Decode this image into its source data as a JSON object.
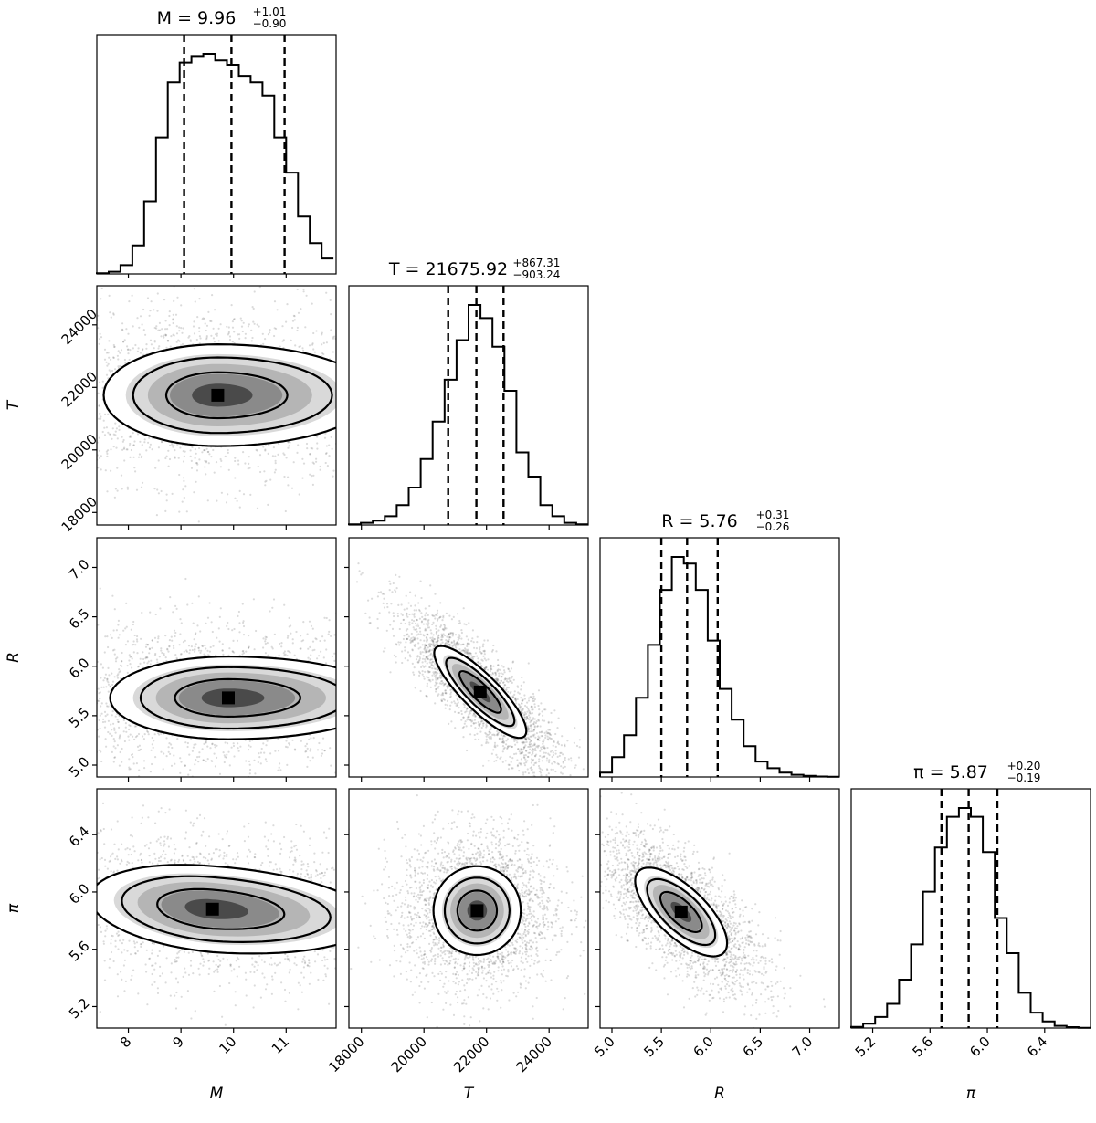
{
  "chart_data": {
    "type": "corner",
    "parameters": [
      {
        "key": "M",
        "label": "M",
        "ticks": [
          "8",
          "9",
          "10",
          "11"
        ],
        "title": {
          "lhs": "M = 9.96",
          "plus": "+1.01",
          "minus": "−0.90"
        },
        "median": 9.96,
        "lo": 9.06,
        "hi": 10.97,
        "range": [
          7.4,
          11.95
        ]
      },
      {
        "key": "T",
        "label": "T",
        "ticks": [
          "18000",
          "20000",
          "22000",
          "24000"
        ],
        "title": {
          "lhs": "T = 21675.92",
          "plus": "+867.31",
          "minus": "−903.24"
        },
        "median": 21675.92,
        "lo": 20772.68,
        "hi": 22543.23,
        "range": [
          17600,
          25250
        ]
      },
      {
        "key": "R",
        "label": "R",
        "ticks": [
          "5.0",
          "5.5",
          "6.0",
          "6.5",
          "7.0"
        ],
        "title": {
          "lhs": "R = 5.76",
          "plus": "+0.31",
          "minus": "−0.26"
        },
        "median": 5.76,
        "lo": 5.5,
        "hi": 6.07,
        "range": [
          4.88,
          7.3
        ]
      },
      {
        "key": "pi",
        "label": "π",
        "ticks": [
          "5.2",
          "5.6",
          "6.0",
          "6.4"
        ],
        "title": {
          "lhs": "π = 5.87",
          "plus": "+0.20",
          "minus": "−0.19"
        },
        "median": 5.87,
        "lo": 5.68,
        "hi": 6.07,
        "range": [
          5.05,
          6.72
        ]
      }
    ],
    "histograms": [
      {
        "param": "M",
        "bin_edges": [
          7.4,
          7.625,
          7.85,
          8.075,
          8.3,
          8.525,
          8.75,
          8.975,
          9.2,
          9.425,
          9.65,
          9.875,
          10.1,
          10.325,
          10.55,
          10.775,
          11.0,
          11.225,
          11.45,
          11.675,
          11.9
        ],
        "counts": [
          0.003,
          0.01,
          0.04,
          0.13,
          0.33,
          0.62,
          0.87,
          0.96,
          0.99,
          1.0,
          0.97,
          0.95,
          0.9,
          0.87,
          0.81,
          0.62,
          0.46,
          0.26,
          0.14,
          0.07
        ]
      },
      {
        "param": "T",
        "bin_edges": [
          17600,
          17982.5,
          18365,
          18747.5,
          19130,
          19512.5,
          19895,
          20277.5,
          20660,
          21042.5,
          21425,
          21807.5,
          22190,
          22572.5,
          22955,
          23337.5,
          23720,
          24102.5,
          24485,
          24867.5,
          25250
        ],
        "counts": [
          0.003,
          0.01,
          0.02,
          0.04,
          0.09,
          0.17,
          0.3,
          0.47,
          0.66,
          0.84,
          1.0,
          0.94,
          0.81,
          0.61,
          0.33,
          0.22,
          0.09,
          0.04,
          0.01,
          0.003
        ]
      },
      {
        "param": "R",
        "bin_edges": [
          4.88,
          5.001,
          5.122,
          5.243,
          5.364,
          5.485,
          5.606,
          5.727,
          5.848,
          5.969,
          6.09,
          6.211,
          6.332,
          6.453,
          6.574,
          6.695,
          6.816,
          6.937,
          7.058,
          7.179,
          7.3
        ],
        "counts": [
          0.02,
          0.09,
          0.19,
          0.36,
          0.6,
          0.85,
          1.0,
          0.97,
          0.85,
          0.62,
          0.4,
          0.26,
          0.14,
          0.07,
          0.04,
          0.02,
          0.01,
          0.005,
          0.002,
          0.001
        ]
      },
      {
        "param": "pi",
        "bin_edges": [
          5.05,
          5.1335,
          5.217,
          5.3005,
          5.384,
          5.4675,
          5.551,
          5.6345,
          5.718,
          5.8015,
          5.885,
          5.9685,
          6.052,
          6.1355,
          6.219,
          6.3025,
          6.386,
          6.4695,
          6.553,
          6.6365,
          6.72
        ],
        "counts": [
          0.005,
          0.02,
          0.05,
          0.11,
          0.22,
          0.38,
          0.62,
          0.82,
          0.96,
          1.0,
          0.96,
          0.8,
          0.5,
          0.34,
          0.16,
          0.07,
          0.03,
          0.01,
          0.004,
          0.001
        ]
      }
    ],
    "pairs": [
      {
        "x": "M",
        "y": "T",
        "peak": [
          9.7,
          21750
        ],
        "sx": 1.4,
        "sy": 1050,
        "rho": 0.0,
        "skew_x": 0.35
      },
      {
        "x": "M",
        "y": "R",
        "peak": [
          9.9,
          5.68
        ],
        "sx": 1.45,
        "sy": 0.27,
        "rho": 0.0,
        "skew_x": 0.35
      },
      {
        "x": "M",
        "y": "pi",
        "peak": [
          9.6,
          5.88
        ],
        "sx": 1.5,
        "sy": 0.2,
        "rho": -0.25,
        "skew_x": 0.3
      },
      {
        "x": "T",
        "y": "R",
        "peak": [
          21800,
          5.74
        ],
        "sx": 950,
        "sy": 0.3,
        "rho": -0.85,
        "skew_x": 0.0
      },
      {
        "x": "T",
        "y": "pi",
        "peak": [
          21700,
          5.87
        ],
        "sx": 900,
        "sy": 0.2,
        "rho": 0.0,
        "skew_x": 0.0
      },
      {
        "x": "R",
        "y": "pi",
        "peak": [
          5.7,
          5.86
        ],
        "sx": 0.3,
        "sy": 0.2,
        "rho": -0.7,
        "skew_x": 0.0
      }
    ]
  }
}
